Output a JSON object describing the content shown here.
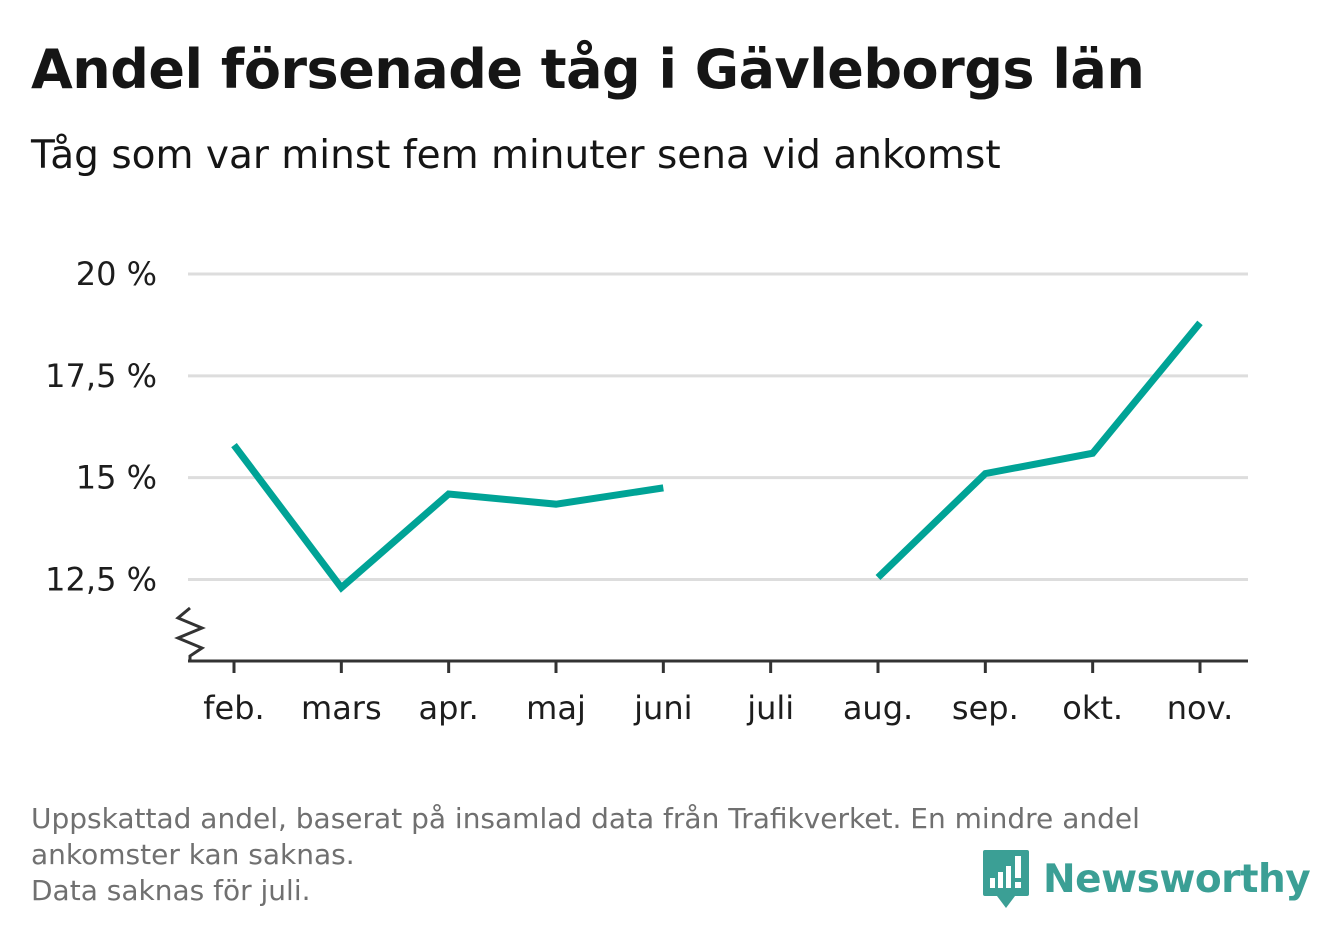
{
  "title": "Andel försenade tåg i Gävleborgs län",
  "subtitle": "Tåg som var minst fem minuter sena vid ankomst",
  "chart_data": {
    "type": "line",
    "categories": [
      "feb.",
      "mars",
      "apr.",
      "maj",
      "juni",
      "juli",
      "aug.",
      "sep.",
      "okt.",
      "nov."
    ],
    "series": [
      {
        "values": [
          15.8,
          12.3,
          14.6,
          14.35,
          14.75,
          null,
          12.55,
          15.1,
          15.6,
          18.8
        ]
      }
    ],
    "yticks": [
      12.5,
      15,
      17.5,
      20
    ],
    "ytick_labels": [
      "12,5 %",
      "15 %",
      "17,5 %",
      "20 %"
    ],
    "ylim": [
      10.5,
      20
    ],
    "grid": true,
    "axis_break": true,
    "line_color": "#00a396",
    "grid_color": "#dddddd",
    "axis_color": "#333333"
  },
  "footnote": {
    "line1": "Uppskattad andel, baserat på insamlad data från Trafikverket. En mindre andel",
    "line2": "ankomster kan saknas.",
    "line3": "Data saknas för juli."
  },
  "logo": {
    "text": "Newsworthy",
    "icon": "newsworthy-logo-icon",
    "color": "#3b9f95"
  }
}
